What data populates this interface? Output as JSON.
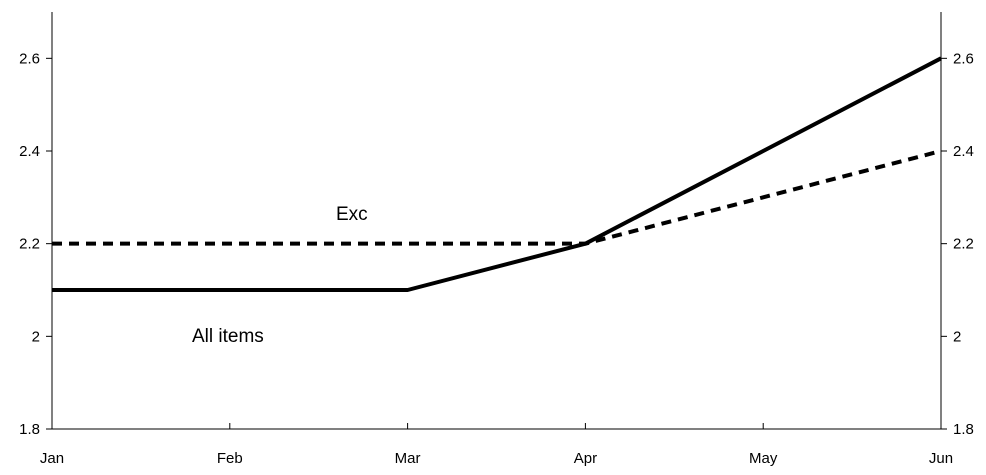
{
  "chart_data": {
    "type": "line",
    "categories": [
      "Jan",
      "Feb",
      "Mar",
      "Apr",
      "May",
      "Jun"
    ],
    "series": [
      {
        "name": "All items",
        "values": [
          2.1,
          2.1,
          2.1,
          2.2,
          2.4,
          2.6
        ],
        "style": "solid",
        "color": "#000000"
      },
      {
        "name": "Exc",
        "values": [
          2.2,
          2.2,
          2.2,
          2.2,
          2.3,
          2.4
        ],
        "style": "dashed",
        "color": "#000000"
      }
    ],
    "y_ticks": [
      "1.8",
      "2",
      "2.2",
      "2.4",
      "2.6"
    ],
    "ylim": [
      1.8,
      2.7
    ],
    "axes": {
      "left": true,
      "right": true,
      "bottom": true,
      "top": false
    },
    "grid": false,
    "title": "",
    "xlabel": "",
    "ylabel": ""
  }
}
